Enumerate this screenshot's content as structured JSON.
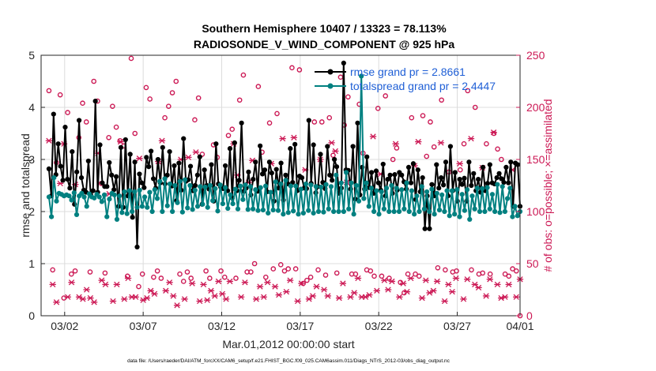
{
  "chart_data": {
    "type": "line",
    "title": "Southern Hemisphere 10407 / 13323 = 78.113%",
    "subtitle": "RADIOSONDE_V_WIND_COMPONENT @ 925 hPa",
    "xlabel": "Mar.01,2012 00:00:00 start",
    "ylabel_left": "rmse and totalspread",
    "ylabel_right": "# of obs: o=possible; ×=assimilated",
    "footnote": "data file: /Users/raeder/DAI/ATM_forcXX/CAM6_setup/f.e21.FHIST_BGC.f09_025.CAM6assim.011/Diags_NTrS_2012-03/obs_diag_output.nc",
    "xlim": [
      0.5,
      31.0
    ],
    "ylim_left": [
      0,
      5
    ],
    "ylim_right": [
      0,
      250
    ],
    "grid": true,
    "x_ticks": [
      {
        "x": 2,
        "label": "03/02"
      },
      {
        "x": 7,
        "label": "03/07"
      },
      {
        "x": 12,
        "label": "03/12"
      },
      {
        "x": 17,
        "label": "03/17"
      },
      {
        "x": 22,
        "label": "03/22"
      },
      {
        "x": 27,
        "label": "03/27"
      },
      {
        "x": 32,
        "label": "04/01"
      }
    ],
    "y_ticks_left": [
      0,
      1,
      2,
      3,
      4,
      5
    ],
    "y_ticks_right": [
      0,
      50,
      100,
      150,
      200,
      250
    ],
    "colors": {
      "rmse": "#000000",
      "spread": "#008080",
      "obs": "#cc1955",
      "legend_text": "#1f5fd6"
    },
    "legend": {
      "position": "top-right",
      "entries": [
        {
          "label": "rmse grand pr = 2.8661",
          "series": "rmse"
        },
        {
          "label": "totalspread grand pr = 2.4447",
          "series": "spread"
        }
      ]
    },
    "series": [
      {
        "name": "rmse",
        "axis": "left",
        "values": [
          2.82,
          2.3,
          3.87,
          2.71,
          3.3,
          2.87,
          2.6,
          3.62,
          2.62,
          2.45,
          3.15,
          2.14,
          2.76,
          3.75,
          2.65,
          2.41,
          2.37,
          2.97,
          2.32,
          2.4,
          4.12,
          2.37,
          3.28,
          2.55,
          2.48,
          2.48,
          2.94,
          2.7,
          2.42,
          2.67,
          2.1,
          3.23,
          2.08,
          3.38,
          2.3,
          3.1,
          1.89,
          2.95,
          1.32,
          2.72,
          2.55,
          2.46,
          3.04,
          2.86,
          3.16,
          2.63,
          2.45,
          3.0,
          2.55,
          3.23,
          2.53,
          2.7,
          3.15,
          2.49,
          2.88,
          2.21,
          2.93,
          2.41,
          3.4,
          2.58,
          2.61,
          2.87,
          2.4,
          2.5,
          2.7,
          3.05,
          2.14,
          2.8,
          2.5,
          2.43,
          2.9,
          2.2,
          3.3,
          2.53,
          2.47,
          2.44,
          2.88,
          2.4,
          3.21,
          2.26,
          3.32,
          2.4,
          2.6,
          3.7,
          2.39,
          2.45,
          2.76,
          2.32,
          2.62,
          2.95,
          2.39,
          3.26,
          2.72,
          2.8,
          2.38,
          2.95,
          2.74,
          2.2,
          2.81,
          2.45,
          2.93,
          2.22,
          2.7,
          2.53,
          3.21,
          2.56,
          3.29,
          2.4,
          2.68,
          2.65,
          2.45,
          2.44,
          3.75,
          2.54,
          3.28,
          2.36,
          2.48,
          3.1,
          2.56,
          2.44,
          3.25,
          2.7,
          2.6,
          3.0,
          2.86,
          2.35,
          2.45,
          4.85,
          2.8,
          2.79,
          2.43,
          3.25,
          2.24,
          3.7,
          2.32,
          2.85,
          2.43,
          3.05,
          2.46,
          2.75,
          2.35,
          2.78,
          2.55,
          2.41,
          2.91,
          2.3,
          2.62,
          2.7,
          2.35,
          2.71,
          2.41,
          2.75,
          2.7,
          2.57,
          2.43,
          2.85,
          2.55,
          2.92,
          2.23,
          2.8,
          2.38,
          2.65,
          1.67,
          2.3,
          1.67,
          2.52,
          2.3,
          2.9,
          2.45,
          2.65,
          2.51,
          2.95,
          2.3,
          3.25,
          2.4,
          2.75,
          2.2,
          2.62,
          2.52,
          2.64,
          2.2,
          2.95,
          2.5,
          2.73,
          2.4,
          2.62,
          2.37,
          2.85,
          2.4,
          2.54,
          2.9,
          2.55,
          2.53,
          2.65,
          2.73,
          2.63,
          2.56,
          2.85,
          2.55,
          2.95,
          2.1,
          2.93,
          2.9,
          2.1
        ]
      },
      {
        "name": "totalspread",
        "axis": "left",
        "values": [
          2.28,
          1.9,
          2.65,
          2.2,
          2.35,
          2.33,
          2.3,
          2.32,
          2.3,
          2.22,
          2.36,
          1.94,
          2.3,
          2.35,
          2.28,
          2.1,
          2.34,
          2.28,
          2.26,
          2.33,
          2.28,
          2.19,
          2.32,
          1.9,
          2.24,
          2.35,
          2.32,
          1.85,
          2.3,
          1.98,
          2.38,
          1.96,
          2.4,
          2.0,
          2.38,
          2.08,
          2.41,
          2.1,
          2.28,
          2.08,
          2.37,
          2.0,
          2.42,
          2.25,
          2.58,
          2.0,
          2.63,
          2.11,
          2.53,
          2.0,
          2.5,
          2.17,
          2.58,
          1.99,
          2.61,
          2.07,
          2.5,
          2.04,
          2.41,
          2.1,
          2.48,
          2.14,
          2.47,
          2.08,
          2.5,
          2.21,
          2.44,
          2.01,
          2.51,
          2.15,
          2.46,
          2.06,
          2.32,
          2.15,
          2.43,
          2.05,
          2.49,
          2.23,
          2.51,
          2.04,
          2.48,
          2.05,
          2.42,
          2.02,
          2.46,
          2.03,
          2.49,
          1.97,
          2.37,
          2.03,
          2.57,
          2.02,
          2.53,
          1.95,
          2.6,
          1.98,
          2.49,
          2.01,
          2.49,
          1.95,
          2.43,
          1.97,
          2.53,
          2.02,
          2.51,
          1.97,
          2.48,
          2.0,
          2.47,
          1.99,
          2.52,
          2.05,
          2.48,
          2.0,
          2.7,
          2.0,
          2.55,
          2.0,
          2.75,
          2.05,
          2.55,
          1.95,
          2.5,
          2.2,
          4.6,
          2.25,
          2.55,
          2.1,
          2.45,
          2.0,
          2.4,
          1.95,
          2.38,
          2.05,
          2.45,
          2.0,
          2.5,
          2.0,
          2.45,
          2.0,
          2.42,
          2.05,
          2.55,
          2.0,
          2.4,
          1.95,
          2.3,
          2.0,
          2.48,
          2.05,
          2.38,
          2.0,
          2.43,
          1.95,
          2.35,
          2.03,
          2.32,
          2.0,
          2.4,
          1.92,
          2.4,
          1.95,
          2.42,
          1.9,
          2.33,
          2.02,
          2.42,
          1.85,
          2.3,
          2.05,
          2.45,
          2.0,
          2.44,
          2.0,
          2.46,
          2.05,
          2.33,
          2.0,
          2.52,
          1.98,
          2.48,
          2.0,
          2.25,
          2.45,
          1.9,
          2.1,
          1.92,
          2.0
        ]
      },
      {
        "name": "obs_possible",
        "axis": "right",
        "marker": "o",
        "values": [
          216,
          44,
          147,
          212,
          17,
          195,
          40,
          43,
          171,
          204,
          186,
          42,
          225,
          206,
          127,
          41,
          171,
          201,
          181,
          168,
          163,
          38,
          247,
          175,
          28,
          40,
          219,
          208,
          37,
          43,
          36,
          190,
          201,
          214,
          225,
          40,
          33,
          42,
          36,
          188,
          209,
          155,
          43,
          36,
          164,
          152,
          43,
          37,
          173,
          179,
          36,
          207,
          231,
          42,
          42,
          50,
          220,
          157,
          37,
          185,
          45,
          194,
          49,
          43,
          45,
          238,
          45,
          236,
          31,
          34,
          37,
          186,
          44,
          186,
          39,
          190,
          154,
          41,
          229,
          183,
          210,
          40,
          40,
          203,
          156,
          44,
          43,
          38,
          199,
          38,
          211,
          36,
          150,
          161,
          32,
          22,
          40,
          190,
          40,
          38,
          192,
          153,
          186,
          162,
          46,
          207,
          44,
          138,
          42,
          43,
          140,
          165,
          216,
          44,
          200,
          40,
          41,
          165,
          40,
          175,
          160,
          150,
          40,
          38,
          45,
          43,
          0
        ]
      },
      {
        "name": "obs_assimilated",
        "axis": "right",
        "marker": "x",
        "values": [
          168,
          30,
          13,
          127,
          165,
          18,
          32,
          126,
          18,
          16,
          25,
          17,
          13,
          156,
          34,
          30,
          117,
          14,
          30,
          167,
          16,
          36,
          18,
          18,
          151,
          15,
          17,
          24,
          21,
          148,
          168,
          24,
          32,
          19,
          10,
          150,
          16,
          152,
          31,
          157,
          14,
          30,
          15,
          24,
          19,
          33,
          21,
          16,
          33,
          165,
          135,
          18,
          32,
          128,
          149,
          16,
          28,
          18,
          32,
          146,
          28,
          20,
          170,
          23,
          34,
          171,
          14,
          31,
          140,
          16,
          19,
          28,
          150,
          25,
          19,
          166,
          158,
          17,
          31,
          128,
          18,
          22,
          36,
          18,
          18,
          20,
          172,
          24,
          136,
          34,
          25,
          33,
          165,
          18,
          31,
          23,
          36,
          144,
          167,
          17,
          34,
          22,
          24,
          33,
          166,
          14,
          30,
          23,
          36,
          146,
          16,
          35,
          170,
          30,
          27,
          142,
          19,
          35,
          176,
          30,
          17,
          18,
          30,
          140,
          18,
          35
        ]
      }
    ]
  }
}
